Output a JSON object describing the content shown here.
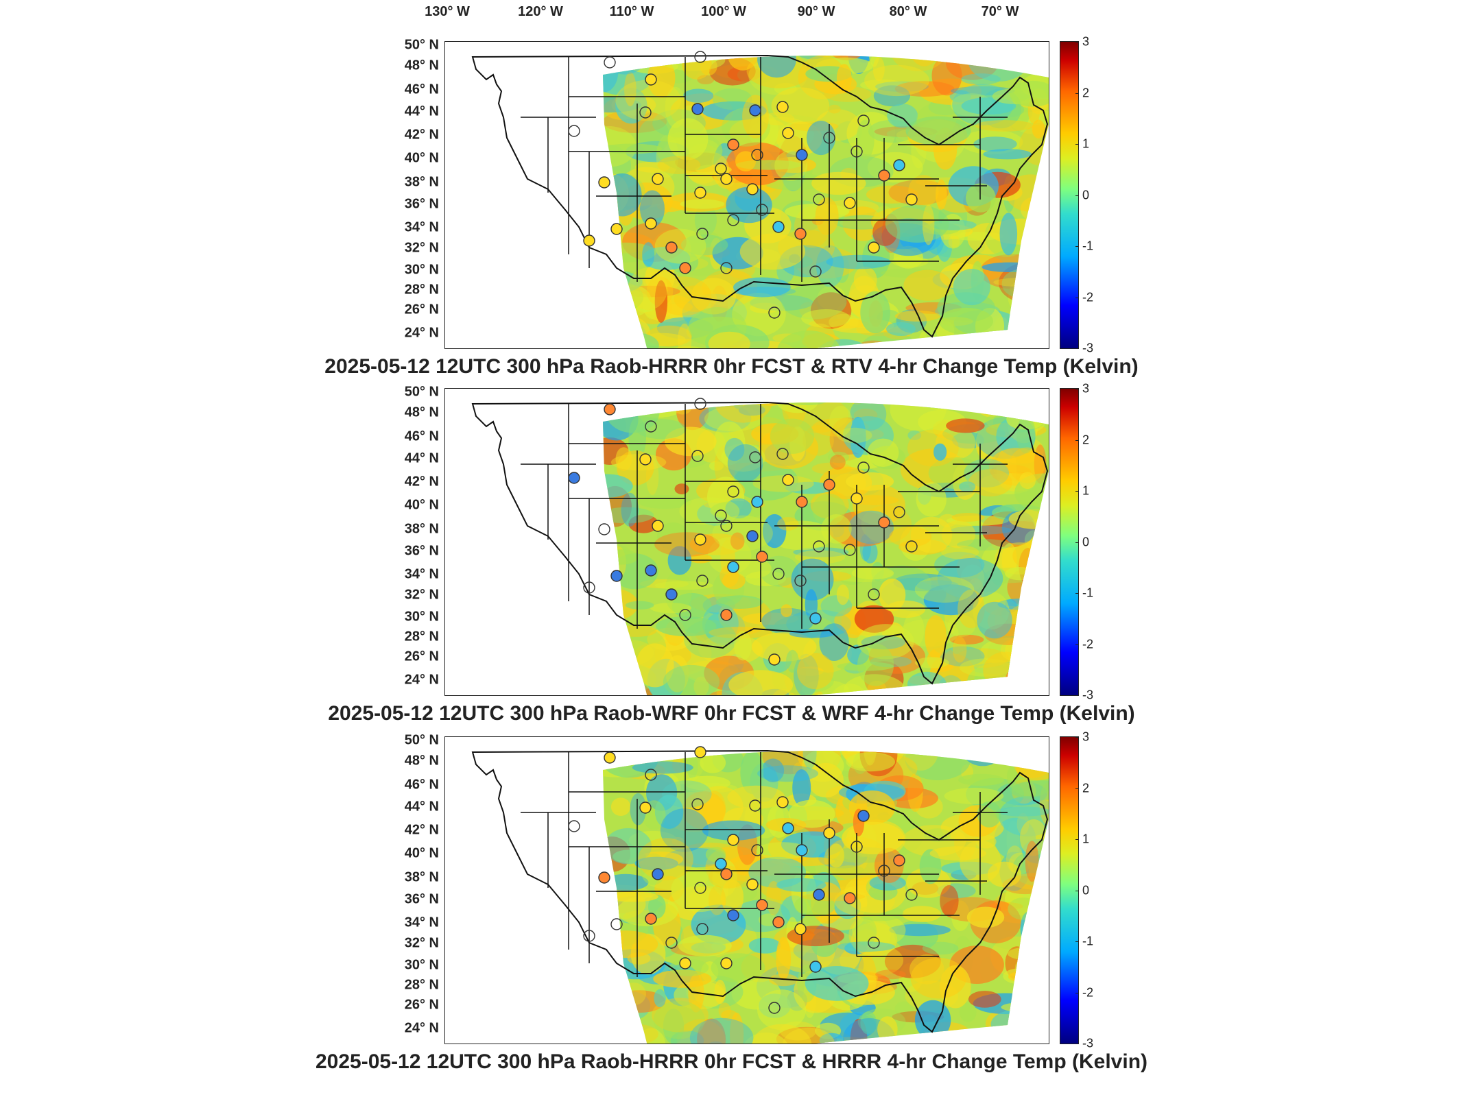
{
  "longitude_labels": [
    "130° W",
    "120° W",
    "110° W",
    "100° W",
    "90° W",
    "80° W",
    "70° W"
  ],
  "latitude_labels": [
    "50° N",
    "48° N",
    "46° N",
    "44° N",
    "42° N",
    "40° N",
    "38° N",
    "36° N",
    "34° N",
    "32° N",
    "30° N",
    "28° N",
    "26° N",
    "24° N"
  ],
  "colorbar": {
    "ticks": [
      "3",
      "2",
      "1",
      "0",
      "-1",
      "-2",
      "-3"
    ],
    "range": [
      -3,
      3
    ],
    "colormap": "jet"
  },
  "panels": [
    {
      "title": "2025-05-12 12UTC 300 hPa Raob-HRRR 0hr FCST & RTV 4-hr Change Temp (Kelvin)"
    },
    {
      "title": "2025-05-12 12UTC 300 hPa Raob-WRF 0hr FCST & WRF 4-hr Change Temp (Kelvin)"
    },
    {
      "title": "2025-05-12 12UTC 300 hPa Raob-HRRR 0hr FCST & HRRR 4-hr Change Temp (Kelvin)"
    }
  ],
  "colors": {
    "field_base": "#b5e24a",
    "field_warm": "#f0d21c",
    "field_cool": "#3fc7e0",
    "border": "#111111"
  }
}
